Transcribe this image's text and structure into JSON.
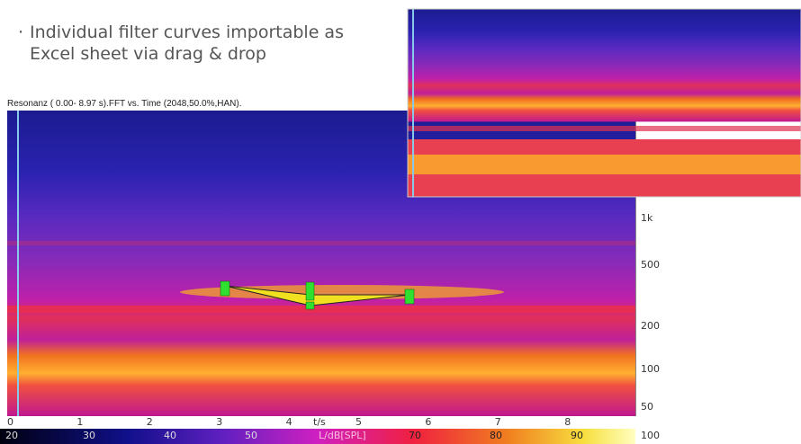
{
  "bullet_lines": [
    "Individual filter curves importable as",
    "Excel sheet via drag & drop"
  ],
  "window_title": "Resonanz ( 0.00- 8.97 s).FFT vs. Time (2048,50.0%,HAN).",
  "frequency_labels": [
    "1k",
    "500",
    "200",
    "100",
    "50"
  ],
  "time_labels": [
    "0",
    "1",
    "2",
    "3",
    "4",
    "5",
    "6",
    "7",
    "8"
  ],
  "time_unit": "t/s",
  "level_labels": [
    "20",
    "30",
    "40",
    "50",
    "70",
    "80",
    "90",
    "100"
  ],
  "level_unit": "L/dB[SPL]"
}
